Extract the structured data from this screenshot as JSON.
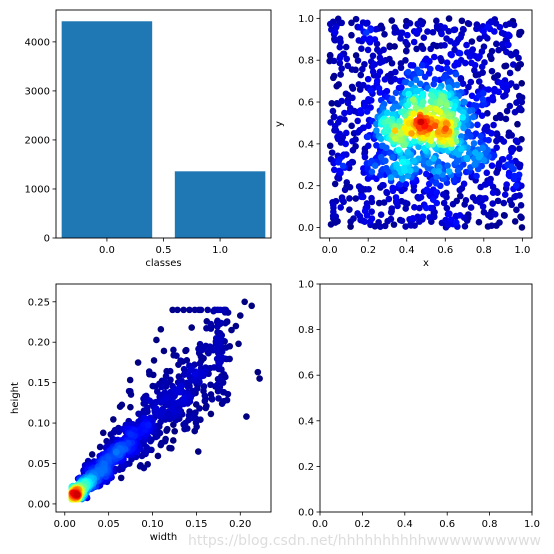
{
  "watermark": "https://blog.csdn.net/hhhhhhhhhhwwwwwwwwww",
  "chart_data": [
    {
      "id": "classes",
      "type": "bar",
      "x": [
        0.0,
        1.0
      ],
      "values": [
        4420,
        1360
      ],
      "bar_width": 0.8,
      "xlabel": "classes",
      "ylabel": "",
      "xlim": [
        -0.45,
        1.45
      ],
      "ylim": [
        0,
        4650
      ],
      "xticks": [
        0.0,
        1.0
      ],
      "xtick_labels": [
        "0.0",
        "0.5",
        "1.0"
      ],
      "xtick_values": [
        0.0,
        0.5,
        1.0
      ],
      "ytick_values": [
        0,
        1000,
        2000,
        3000,
        4000
      ],
      "ytick_labels": [
        "0",
        "1000",
        "2000",
        "3000",
        "4000"
      ],
      "color": "#1f77b4"
    },
    {
      "id": "xy",
      "type": "scatter",
      "description_points": "uniformly distributed box centers, colored by density (jet colormap)",
      "n_points": 1400,
      "x_range": [
        0.0,
        1.0
      ],
      "y_range": [
        0.0,
        1.0
      ],
      "xlabel": "x",
      "ylabel": "y",
      "xlim": [
        -0.05,
        1.05
      ],
      "ylim": [
        -0.05,
        1.04
      ],
      "xtick_values": [
        0.0,
        0.2,
        0.4,
        0.6,
        0.8,
        1.0
      ],
      "xtick_labels": [
        "0.0",
        "0.2",
        "0.4",
        "0.6",
        "0.8",
        "1.0"
      ],
      "ytick_values": [
        0.0,
        0.2,
        0.4,
        0.6,
        0.8,
        1.0
      ],
      "ytick_labels": [
        "0.0",
        "0.2",
        "0.4",
        "0.6",
        "0.8",
        "1.0"
      ],
      "colormap": "jet"
    },
    {
      "id": "wh",
      "type": "scatter",
      "description_points": "box width vs height, strongly correlated, dense near origin, colored by density (jet colormap)",
      "n_points": 1100,
      "xlabel": "width",
      "ylabel": "height",
      "xlim": [
        -0.01,
        0.235
      ],
      "ylim": [
        -0.01,
        0.272
      ],
      "xtick_values": [
        0.0,
        0.05,
        0.1,
        0.15,
        0.2
      ],
      "xtick_labels": [
        "0.00",
        "0.05",
        "0.10",
        "0.15",
        "0.20"
      ],
      "ytick_values": [
        0.0,
        0.05,
        0.1,
        0.15,
        0.2,
        0.25
      ],
      "ytick_labels": [
        "0.00",
        "0.05",
        "0.10",
        "0.15",
        "0.20",
        "0.25"
      ],
      "colormap": "jet",
      "outliers": [
        [
          0.205,
          0.25
        ],
        [
          0.213,
          0.245
        ],
        [
          0.195,
          0.22
        ],
        [
          0.19,
          0.215
        ],
        [
          0.2,
          0.233
        ],
        [
          0.198,
          0.198
        ],
        [
          0.188,
          0.195
        ],
        [
          0.22,
          0.163
        ],
        [
          0.222,
          0.155
        ],
        [
          0.207,
          0.108
        ],
        [
          0.183,
          0.157
        ]
      ]
    },
    {
      "id": "empty",
      "type": "scatter",
      "xlabel": "",
      "ylabel": "",
      "xlim": [
        0.0,
        1.0
      ],
      "ylim": [
        0.0,
        1.0
      ],
      "xtick_values": [
        0.0,
        0.2,
        0.4,
        0.6,
        0.8,
        1.0
      ],
      "xtick_labels": [
        "0.0",
        "0.2",
        "0.4",
        "0.6",
        "0.8",
        "1.0"
      ],
      "ytick_values": [
        0.0,
        0.2,
        0.4,
        0.6,
        0.8,
        1.0
      ],
      "ytick_labels": [
        "0.0",
        "0.2",
        "0.4",
        "0.6",
        "0.8",
        "1.0"
      ]
    }
  ]
}
